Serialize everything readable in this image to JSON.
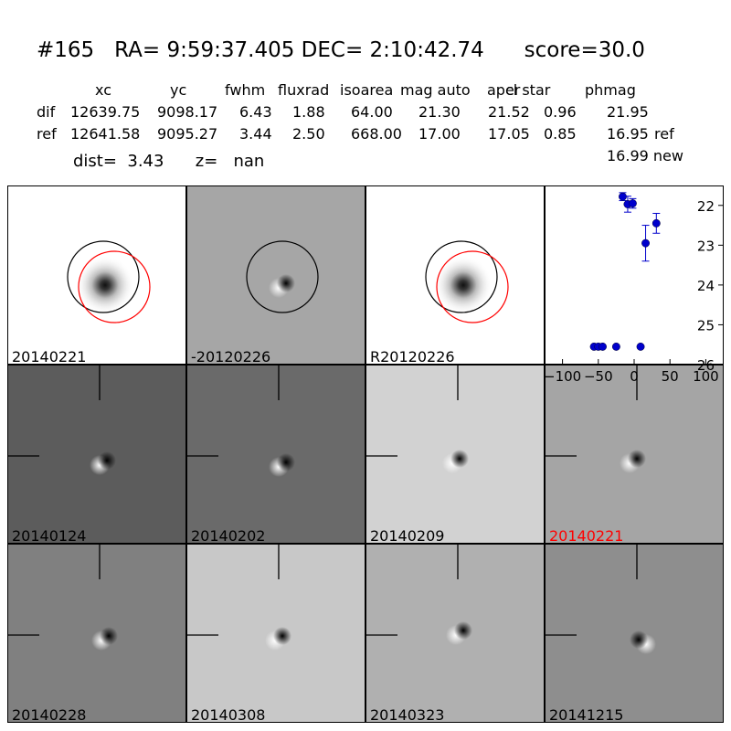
{
  "header": {
    "title": "#165   RA= 9:59:37.405 DEC= 2:10:42.74      score=30.0",
    "columns": [
      "xc",
      "yc",
      "fwhm",
      "fluxrad",
      "isoarea",
      "mag auto",
      "aper",
      "cl star",
      "phmag"
    ],
    "rows": [
      {
        "label": "dif",
        "values": [
          "12639.75",
          "9098.17",
          "6.43",
          "1.88",
          "64.00",
          "21.30",
          "21.52",
          "0.96",
          "21.95"
        ],
        "suffix": ""
      },
      {
        "label": "ref",
        "values": [
          "12641.58",
          "9095.27",
          "3.44",
          "2.50",
          "668.00",
          "17.00",
          "17.05",
          "0.85",
          "16.95"
        ],
        "suffix": "ref"
      }
    ],
    "new_mag": "16.99 new",
    "dist_line": "dist=  3.43      z=   nan"
  },
  "panels": {
    "top": [
      {
        "label": "20140221",
        "bg": "#ffffff",
        "kind": "star"
      },
      {
        "label": "-20120226",
        "bg": "#a6a6a6",
        "kind": "diff"
      },
      {
        "label": "R20120226",
        "bg": "#ffffff",
        "kind": "star"
      }
    ],
    "stamps": [
      {
        "label": "20140124",
        "bg": "#5c5c5c",
        "label_color": "#000000"
      },
      {
        "label": "20140202",
        "bg": "#6a6a6a",
        "label_color": "#000000"
      },
      {
        "label": "20140209",
        "bg": "#d2d2d2",
        "label_color": "#000000"
      },
      {
        "label": "20140221",
        "bg": "#a5a5a5",
        "label_color": "#ff0000"
      },
      {
        "label": "20140228",
        "bg": "#808080",
        "label_color": "#000000"
      },
      {
        "label": "20140308",
        "bg": "#c8c8c8",
        "label_color": "#000000"
      },
      {
        "label": "20140323",
        "bg": "#b0b0b0",
        "label_color": "#000000"
      },
      {
        "label": "20141215",
        "bg": "#8e8e8e",
        "label_color": "#000000"
      }
    ]
  },
  "chart_data": {
    "type": "scatter",
    "xlim": [
      -125,
      125
    ],
    "ylim": [
      26,
      21.5
    ],
    "inverted_y": true,
    "x_ticks": [
      "-100",
      "-50",
      "0",
      "50",
      "100"
    ],
    "y_ticks": [
      "22",
      "23",
      "24",
      "25",
      "26"
    ],
    "marker_color": "#0000cc",
    "points": [
      {
        "x": -56,
        "y": 25.55,
        "err": 0
      },
      {
        "x": -50,
        "y": 25.55,
        "err": 0
      },
      {
        "x": -44,
        "y": 25.55,
        "err": 0
      },
      {
        "x": -25,
        "y": 25.55,
        "err": 0
      },
      {
        "x": -16,
        "y": 21.78,
        "err": 0.1
      },
      {
        "x": -9,
        "y": 21.97,
        "err": 0.2
      },
      {
        "x": -2,
        "y": 21.95,
        "err": 0.12
      },
      {
        "x": 9,
        "y": 25.55,
        "err": 0
      },
      {
        "x": 16,
        "y": 22.95,
        "err": 0.45
      },
      {
        "x": 31,
        "y": 22.45,
        "err": 0.25
      }
    ]
  }
}
